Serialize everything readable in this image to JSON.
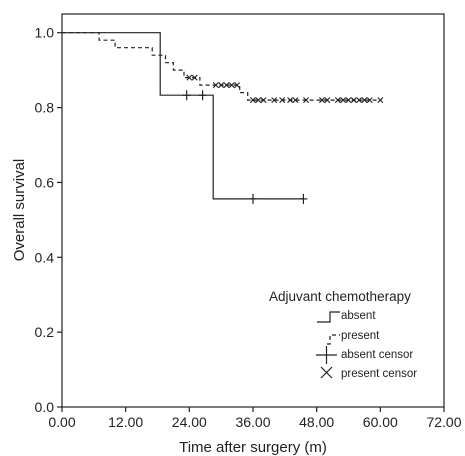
{
  "chart_data": {
    "type": "line",
    "subtype": "kaplan-meier",
    "xlabel": "Time after surgery (m)",
    "ylabel": "Overall survival",
    "xlim": [
      0,
      72
    ],
    "ylim": [
      0,
      1.05
    ],
    "xticks": [
      "0.00",
      "12.00",
      "24.00",
      "36.00",
      "48.00",
      "60.00",
      "72.00"
    ],
    "yticks": [
      "0.0",
      "0.2",
      "0.4",
      "0.6",
      "0.8",
      "1.0"
    ],
    "grid": false,
    "legend": {
      "title": "Adjuvant chemotherapy",
      "placement": "bottom-right",
      "entries": [
        "absent",
        "present",
        "absent censor",
        "present censor"
      ]
    },
    "series": [
      {
        "name": "absent",
        "style": "solid",
        "steps": [
          [
            0,
            1.0
          ],
          [
            18.5,
            1.0
          ],
          [
            18.5,
            0.833
          ],
          [
            28.5,
            0.833
          ],
          [
            28.5,
            0.556
          ],
          [
            45.5,
            0.556
          ]
        ],
        "censors": [
          [
            23.5,
            0.833
          ],
          [
            26.5,
            0.833
          ],
          [
            36.0,
            0.556
          ],
          [
            45.5,
            0.556
          ]
        ],
        "censor_marker": "plus"
      },
      {
        "name": "present",
        "style": "dashed",
        "steps": [
          [
            0,
            1.0
          ],
          [
            7,
            1.0
          ],
          [
            7,
            0.98
          ],
          [
            10,
            0.98
          ],
          [
            10,
            0.96
          ],
          [
            17,
            0.96
          ],
          [
            17,
            0.94
          ],
          [
            19.5,
            0.94
          ],
          [
            19.5,
            0.92
          ],
          [
            21,
            0.92
          ],
          [
            21,
            0.9
          ],
          [
            23,
            0.9
          ],
          [
            23,
            0.88
          ],
          [
            26,
            0.88
          ],
          [
            26,
            0.86
          ],
          [
            33.5,
            0.86
          ],
          [
            33.5,
            0.84
          ],
          [
            35,
            0.84
          ],
          [
            35,
            0.82
          ],
          [
            60,
            0.82
          ]
        ],
        "censors": [
          [
            24,
            0.88
          ],
          [
            25,
            0.88
          ],
          [
            29,
            0.86
          ],
          [
            30,
            0.86
          ],
          [
            31,
            0.86
          ],
          [
            32,
            0.86
          ],
          [
            33,
            0.86
          ],
          [
            36,
            0.82
          ],
          [
            37,
            0.82
          ],
          [
            38,
            0.82
          ],
          [
            40,
            0.82
          ],
          [
            41.5,
            0.82
          ],
          [
            43,
            0.82
          ],
          [
            44,
            0.82
          ],
          [
            46,
            0.82
          ],
          [
            49,
            0.82
          ],
          [
            50,
            0.82
          ],
          [
            52,
            0.82
          ],
          [
            53,
            0.82
          ],
          [
            54,
            0.82
          ],
          [
            55,
            0.82
          ],
          [
            56,
            0.82
          ],
          [
            57,
            0.82
          ],
          [
            58,
            0.82
          ],
          [
            60,
            0.82
          ]
        ],
        "censor_marker": "x"
      }
    ]
  }
}
